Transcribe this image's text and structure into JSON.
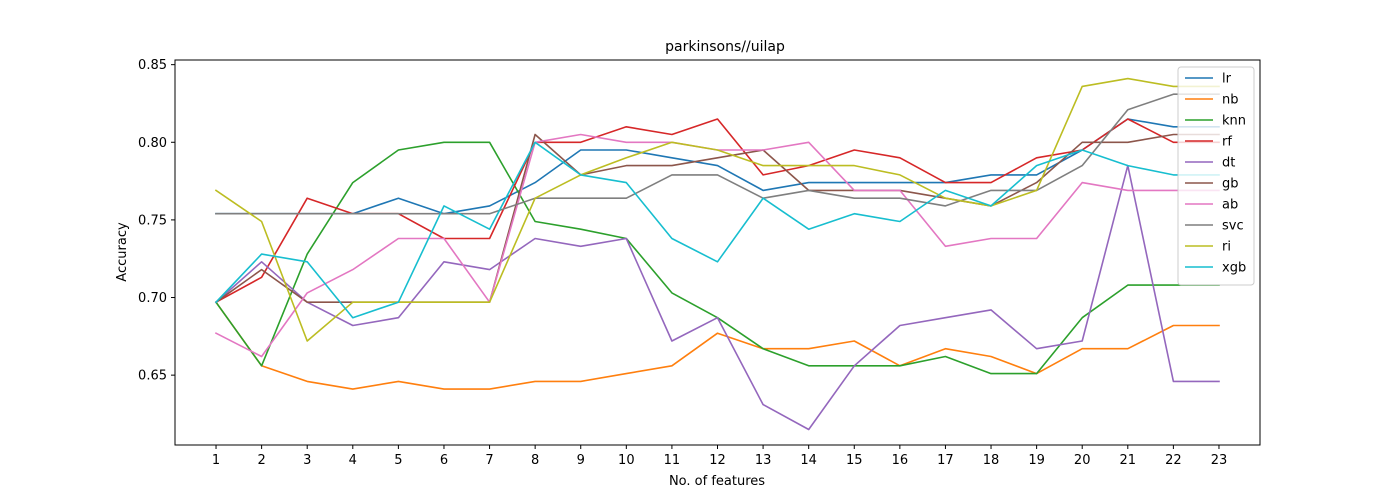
{
  "chart_data": {
    "type": "line",
    "title": "parkinsons//uilap",
    "xlabel": "No. of features",
    "ylabel": "Accuracy",
    "x": [
      1,
      2,
      3,
      4,
      5,
      6,
      7,
      8,
      9,
      10,
      11,
      12,
      13,
      14,
      15,
      16,
      17,
      18,
      19,
      20,
      21,
      22,
      23
    ],
    "xlim": [
      0.1,
      23.9
    ],
    "ylim": [
      0.605,
      0.853
    ],
    "yticks": [
      0.65,
      0.7,
      0.75,
      0.8,
      0.85
    ],
    "ytick_labels": [
      "0.65",
      "0.70",
      "0.75",
      "0.80",
      "0.85"
    ],
    "grid": false,
    "legend_position": "top-right",
    "series": [
      {
        "name": "lr",
        "color": "#1f77b4",
        "values": [
          0.754,
          0.754,
          0.754,
          0.754,
          0.764,
          0.754,
          0.759,
          0.774,
          0.795,
          0.795,
          0.79,
          0.785,
          0.769,
          0.774,
          0.774,
          0.774,
          0.774,
          0.779,
          0.779,
          0.795,
          0.815,
          0.81,
          0.81
        ]
      },
      {
        "name": "nb",
        "color": "#ff7f0e",
        "values": [
          0.697,
          0.656,
          0.646,
          0.641,
          0.646,
          0.641,
          0.641,
          0.646,
          0.646,
          0.651,
          0.656,
          0.677,
          0.667,
          0.667,
          0.672,
          0.656,
          0.667,
          0.662,
          0.651,
          0.667,
          0.667,
          0.682,
          0.682
        ]
      },
      {
        "name": "knn",
        "color": "#2ca02c",
        "values": [
          0.697,
          0.656,
          0.728,
          0.774,
          0.795,
          0.8,
          0.8,
          0.749,
          0.744,
          0.738,
          0.703,
          0.687,
          0.667,
          0.656,
          0.656,
          0.656,
          0.662,
          0.651,
          0.651,
          0.687,
          0.708,
          0.708,
          0.708
        ]
      },
      {
        "name": "rf",
        "color": "#d62728",
        "values": [
          0.697,
          0.713,
          0.764,
          0.754,
          0.754,
          0.738,
          0.738,
          0.8,
          0.8,
          0.81,
          0.805,
          0.815,
          0.779,
          0.785,
          0.795,
          0.79,
          0.774,
          0.774,
          0.79,
          0.795,
          0.815,
          0.8,
          0.8
        ]
      },
      {
        "name": "dt",
        "color": "#9467bd",
        "values": [
          0.697,
          0.723,
          0.697,
          0.682,
          0.687,
          0.723,
          0.718,
          0.738,
          0.733,
          0.738,
          0.672,
          0.687,
          0.631,
          0.615,
          0.656,
          0.682,
          0.687,
          0.692,
          0.667,
          0.672,
          0.785,
          0.646,
          0.646
        ]
      },
      {
        "name": "gb",
        "color": "#8c564b",
        "values": [
          0.697,
          0.718,
          0.697,
          0.697,
          0.697,
          0.697,
          0.697,
          0.805,
          0.779,
          0.785,
          0.785,
          0.79,
          0.795,
          0.769,
          0.769,
          0.769,
          0.764,
          0.759,
          0.774,
          0.8,
          0.8,
          0.805,
          0.805
        ]
      },
      {
        "name": "ab",
        "color": "#e377c2",
        "values": [
          0.677,
          0.662,
          0.703,
          0.718,
          0.738,
          0.738,
          0.697,
          0.8,
          0.805,
          0.8,
          0.8,
          0.795,
          0.795,
          0.8,
          0.769,
          0.769,
          0.733,
          0.738,
          0.738,
          0.774,
          0.769,
          0.769,
          0.769
        ]
      },
      {
        "name": "svc",
        "color": "#7f7f7f",
        "values": [
          0.754,
          0.754,
          0.754,
          0.754,
          0.754,
          0.754,
          0.754,
          0.764,
          0.764,
          0.764,
          0.779,
          0.779,
          0.764,
          0.769,
          0.764,
          0.764,
          0.759,
          0.769,
          0.769,
          0.785,
          0.821,
          0.831,
          0.831
        ]
      },
      {
        "name": "ri",
        "color": "#bcbd22",
        "values": [
          0.769,
          0.749,
          0.672,
          0.697,
          0.697,
          0.697,
          0.697,
          0.764,
          0.779,
          0.79,
          0.8,
          0.795,
          0.785,
          0.785,
          0.785,
          0.779,
          0.764,
          0.759,
          0.769,
          0.836,
          0.841,
          0.836,
          0.836
        ]
      },
      {
        "name": "xgb",
        "color": "#17becf",
        "values": [
          0.697,
          0.728,
          0.723,
          0.687,
          0.697,
          0.759,
          0.744,
          0.8,
          0.779,
          0.774,
          0.738,
          0.723,
          0.764,
          0.744,
          0.754,
          0.749,
          0.769,
          0.759,
          0.785,
          0.795,
          0.785,
          0.779,
          0.779
        ]
      }
    ]
  }
}
